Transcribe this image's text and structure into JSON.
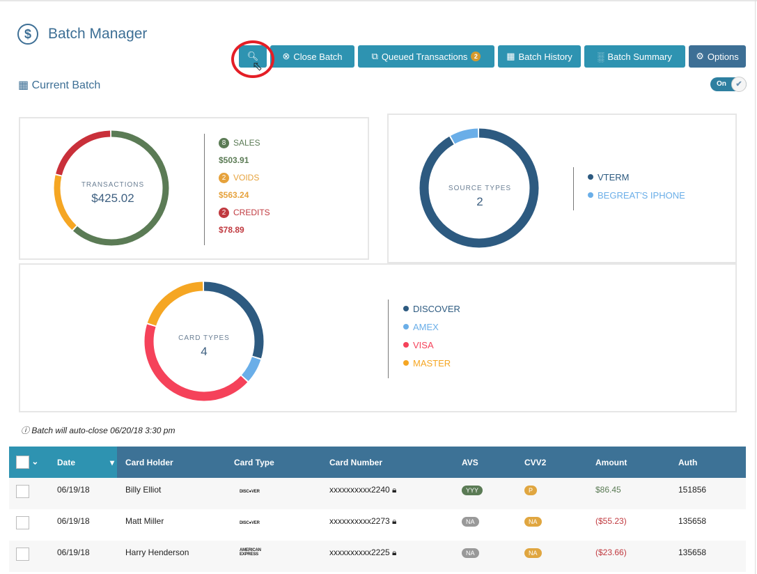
{
  "header": {
    "title": "Batch Manager",
    "current_batch": "Current Batch",
    "toggle": "On"
  },
  "toolbar": {
    "close_batch": "Close Batch",
    "queued": "Queued Transactions",
    "queued_count": "2",
    "history": "Batch History",
    "summary": "Batch Summary",
    "options": "Options"
  },
  "transactions": {
    "label": "TRANSACTIONS",
    "value": "$425.02",
    "sales_count": "8",
    "sales": "SALES",
    "sales_amt": "$503.91",
    "voids_count": "2",
    "voids": "VOIDS",
    "voids_amt": "$563.24",
    "credits_count": "2",
    "credits": "CREDITS",
    "credits_amt": "$78.89"
  },
  "source": {
    "label": "SOURCE TYPES",
    "value": "2",
    "items": [
      "VTERM",
      "BEGREAT'S IPHONE"
    ]
  },
  "cards": {
    "label": "CARD TYPES",
    "value": "4",
    "items": [
      "DISCOVER",
      "AMEX",
      "VISA",
      "MASTER"
    ]
  },
  "chart_data": [
    {
      "type": "pie",
      "title": "TRANSACTIONS",
      "categories": [
        "SALES",
        "VOIDS",
        "CREDITS"
      ],
      "values": [
        0.62,
        0.17,
        0.21
      ],
      "colors": [
        "#5b7b55",
        "#f5a623",
        "#c9303a"
      ]
    },
    {
      "type": "pie",
      "title": "SOURCE TYPES",
      "categories": [
        "VTERM",
        "BEGREAT'S IPHONE"
      ],
      "values": [
        0.92,
        0.08
      ],
      "colors": [
        "#2d5a80",
        "#6aaee8"
      ]
    },
    {
      "type": "pie",
      "title": "CARD TYPES",
      "categories": [
        "DISCOVER",
        "AMEX",
        "VISA",
        "MASTER"
      ],
      "values": [
        0.3,
        0.07,
        0.43,
        0.2
      ],
      "colors": [
        "#2d5a80",
        "#6aaee8",
        "#f5425a",
        "#f5a623"
      ]
    }
  ],
  "note": "Batch will auto-close 06/20/18 3:30 pm",
  "table": {
    "headers": [
      "Date",
      "Card Holder",
      "Card Type",
      "Card Number",
      "AVS",
      "CVV2",
      "Amount",
      "Auth"
    ],
    "rows": [
      {
        "date": "06/19/18",
        "holder": "Billy Elliot",
        "type": "DISC●VER",
        "number": "xxxxxxxxxx2240",
        "avs": "YYY",
        "cvv": "P",
        "amount": "$86.45",
        "auth": "151856"
      },
      {
        "date": "06/19/18",
        "holder": "Matt Miller",
        "type": "DISC●VER",
        "number": "xxxxxxxxxx2273",
        "avs": "NA",
        "cvv": "NA",
        "amount": "($55.23)",
        "auth": "135658"
      },
      {
        "date": "06/19/18",
        "holder": "Harry Henderson",
        "type": "AMERICAN EXPRESS",
        "number": "xxxxxxxxxx2225",
        "avs": "NA",
        "cvv": "NA",
        "amount": "($23.66)",
        "auth": "135658"
      }
    ]
  }
}
